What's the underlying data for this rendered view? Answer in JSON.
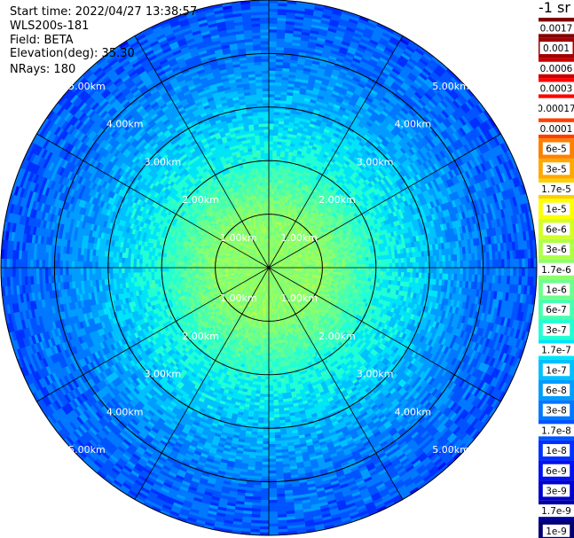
{
  "header": {
    "start_time": "Start time: 2022/04/27 13:38:57",
    "instrument": "WLS200s-181",
    "field": "Field: BETA",
    "elevation": "Elevation(deg): 35.30",
    "nrays": "NRays: 180"
  },
  "colorbar": {
    "unit": "-1 sr",
    "labels": [
      "0.0017",
      "0.001",
      "0.0006",
      "0.0003",
      "0.00017",
      "0.0001",
      "6e-5",
      "3e-5",
      "1.7e-5",
      "1e-5",
      "6e-6",
      "3e-6",
      "1.7e-6",
      "1e-6",
      "6e-7",
      "3e-7",
      "1.7e-7",
      "1e-7",
      "6e-8",
      "3e-8",
      "1.7e-8",
      "1e-8",
      "6e-9",
      "3e-9",
      "1.7e-9",
      "1e-9"
    ],
    "colors": [
      "#7f0000",
      "#a00000",
      "#c80000",
      "#ff0000",
      "#ffffff",
      "#ff3f00",
      "#ff7f00",
      "#ffa800",
      "#ffd000",
      "#ffff00",
      "#d4ff22",
      "#b0ff48",
      "#8cff6c",
      "#6cff8c",
      "#48ffb0",
      "#22ffd4",
      "#00e4f8",
      "#00c0ff",
      "#009cff",
      "#0078ff",
      "#0054ff",
      "#0030ff",
      "#0010f0",
      "#0000cc",
      "#00009c",
      "#000070"
    ]
  },
  "chart_data": {
    "type": "heatmap",
    "title": "",
    "range_unit": "km",
    "ring_labels": [
      "1.00km",
      "2.00km",
      "3.00km",
      "4.00km",
      "5.00km"
    ],
    "rings_km": [
      1,
      2,
      3,
      4,
      5
    ],
    "max_range_km": 5.0,
    "nrays": 180,
    "spoke_angles_deg": [
      0,
      30,
      60,
      90,
      120,
      150,
      180,
      210,
      240,
      270,
      300,
      330
    ],
    "radial_profile": [
      {
        "range_km": 0.0,
        "beta": "1.7e-6"
      },
      {
        "range_km": 1.0,
        "beta": "1.7e-6"
      },
      {
        "range_km": 2.0,
        "beta": "3e-7"
      },
      {
        "range_km": 3.0,
        "beta": "1e-7"
      },
      {
        "range_km": 4.0,
        "beta": "3e-8"
      },
      {
        "range_km": 5.0,
        "beta": "1.7e-8"
      }
    ]
  }
}
